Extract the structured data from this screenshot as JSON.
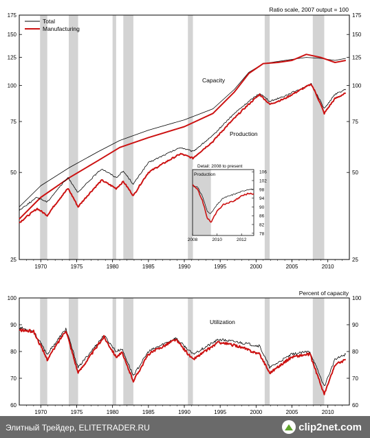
{
  "chart_data": [
    {
      "type": "line",
      "title": "",
      "scale_note": "Ratio scale, 2007 output = 100",
      "scale": "log",
      "ylim": [
        25,
        175
      ],
      "y_ticks": [
        25,
        50,
        75,
        100,
        125,
        150,
        175
      ],
      "x_ticks": [
        "1970",
        "1975",
        "1980",
        "1985",
        "1990",
        "1995",
        "2000",
        "2005",
        "2010"
      ],
      "xlim": [
        1967,
        2013
      ],
      "legend": {
        "position": "top-left",
        "entries": [
          "Total",
          "Manufacturing"
        ]
      },
      "annotations": [
        "Capacity",
        "Production"
      ],
      "recessions": [
        [
          1969.9,
          1970.9
        ],
        [
          1973.9,
          1975.2
        ],
        [
          1980.0,
          1980.5
        ],
        [
          1981.5,
          1982.9
        ],
        [
          1990.5,
          1991.2
        ],
        [
          2001.2,
          2001.9
        ],
        [
          2007.9,
          2009.5
        ]
      ],
      "series": [
        {
          "name": "Total",
          "measure": "capacity",
          "color": "#000000",
          "x": [
            1967,
            1970,
            1974,
            1978,
            1981,
            1985,
            1990,
            1994,
            1997,
            1999,
            2001,
            2003,
            2005,
            2007,
            2009,
            2011,
            2012.5
          ],
          "values": [
            38,
            45,
            52,
            59,
            64.5,
            70,
            76,
            83,
            97,
            111,
            119,
            121,
            123,
            125,
            124,
            122,
            124
          ]
        },
        {
          "name": "Manufacturing",
          "measure": "capacity",
          "color": "#cc1111",
          "x": [
            1967,
            1970,
            1974,
            1978,
            1981,
            1985,
            1990,
            1994,
            1997,
            1999,
            2001,
            2003,
            2005,
            2007,
            2009,
            2011,
            2012.5
          ],
          "values": [
            34.5,
            41,
            48,
            55,
            61,
            66,
            72,
            80,
            95,
            110,
            119,
            120,
            122,
            128,
            125,
            120,
            122
          ]
        },
        {
          "name": "Total",
          "measure": "production",
          "color": "#000000",
          "x": [
            1967,
            1969.5,
            1970.9,
            1973.8,
            1975.2,
            1978.5,
            1980.5,
            1981.5,
            1982.9,
            1985,
            1989.5,
            1991.2,
            1994,
            1997,
            2000.5,
            2001.9,
            2004,
            2007.7,
            2009.5,
            2011,
            2012.5
          ],
          "values": [
            37,
            41,
            39.5,
            48,
            42.5,
            51.5,
            48,
            50.5,
            45.5,
            54,
            61,
            59,
            67,
            80,
            94,
            88,
            92,
            101,
            83,
            93,
            97
          ]
        },
        {
          "name": "Manufacturing",
          "measure": "production",
          "color": "#cc1111",
          "x": [
            1967,
            1969.5,
            1970.9,
            1973.8,
            1975.2,
            1978.5,
            1980.5,
            1981.5,
            1982.9,
            1985,
            1989.5,
            1991.2,
            1994,
            1997,
            2000.5,
            2001.9,
            2004,
            2007.7,
            2009.5,
            2011,
            2012.5
          ],
          "values": [
            33.5,
            37.5,
            35.5,
            44,
            38,
            47,
            44,
            46.5,
            41.5,
            50,
            58,
            56,
            64,
            77,
            93,
            86,
            90,
            101,
            80,
            90,
            94
          ]
        }
      ],
      "inset": {
        "title": "Detail: 2008 to present",
        "label": "Production",
        "x_ticks": [
          "2008",
          "2010",
          "2012"
        ],
        "y_ticks": [
          78,
          82,
          86,
          90,
          94,
          98,
          102,
          106
        ],
        "ylim": [
          77,
          107
        ],
        "xlim": [
          2008,
          2013
        ],
        "recession": [
          2008,
          2009.5
        ],
        "series": [
          {
            "name": "Total",
            "x": [
              2008,
              2008.4,
              2008.8,
              2009.2,
              2009.5,
              2010,
              2010.5,
              2011,
              2011.5,
              2012,
              2012.5,
              2013
            ],
            "values": [
              100,
              99,
              95,
              88,
              87,
              91,
              94,
              95,
              96,
              97,
              98,
              98
            ]
          },
          {
            "name": "Manufacturing",
            "x": [
              2008,
              2008.4,
              2008.8,
              2009.2,
              2009.5,
              2010,
              2010.5,
              2011,
              2011.5,
              2012,
              2012.5,
              2013
            ],
            "values": [
              100,
              98,
              93,
              85,
              83,
              88,
              91,
              92,
              93,
              95,
              96,
              96
            ]
          }
        ]
      }
    },
    {
      "type": "line",
      "title": "",
      "ylabel": "Percent of capacity",
      "annotations": [
        "Utilization"
      ],
      "ylim": [
        60,
        100
      ],
      "y_ticks": [
        60,
        70,
        80,
        90,
        100
      ],
      "x_ticks": [
        "1970",
        "1975",
        "1980",
        "1985",
        "1990",
        "1995",
        "2000",
        "2005",
        "2010"
      ],
      "xlim": [
        1967,
        2013
      ],
      "recessions": [
        [
          1969.9,
          1970.9
        ],
        [
          1973.9,
          1975.2
        ],
        [
          1980.0,
          1980.5
        ],
        [
          1981.5,
          1982.9
        ],
        [
          1990.5,
          1991.2
        ],
        [
          2001.2,
          2001.9
        ],
        [
          2007.9,
          2009.5
        ]
      ],
      "series": [
        {
          "name": "Total",
          "color": "#000000",
          "x": [
            1967,
            1969,
            1970.9,
            1973.5,
            1975.2,
            1978.8,
            1980.5,
            1981.3,
            1982.9,
            1985,
            1988.8,
            1991.2,
            1994.8,
            1997.5,
            2000.5,
            2001.9,
            2005,
            2007.5,
            2009.5,
            2011,
            2012.5
          ],
          "values": [
            89,
            87.5,
            79,
            88.5,
            74,
            86,
            80,
            81,
            71,
            80,
            85,
            79,
            84.5,
            83.5,
            82,
            74,
            79,
            80,
            67,
            77,
            79
          ]
        },
        {
          "name": "Manufacturing",
          "color": "#cc1111",
          "x": [
            1967,
            1969,
            1970.9,
            1973.5,
            1975.2,
            1978.8,
            1980.5,
            1981.3,
            1982.9,
            1985,
            1988.8,
            1991.2,
            1994.8,
            1997.5,
            2000.5,
            2001.9,
            2005,
            2007.5,
            2009.5,
            2011,
            2012.5
          ],
          "values": [
            88,
            87.5,
            77,
            88,
            72,
            85.5,
            78,
            79.5,
            69,
            79,
            84.5,
            77,
            83.5,
            82,
            79,
            72,
            78,
            79,
            64,
            75,
            77
          ]
        }
      ]
    }
  ],
  "footer": {
    "source": "Элитный Трейдер, ELITETRADER.RU",
    "logo": "clip2net.com"
  }
}
